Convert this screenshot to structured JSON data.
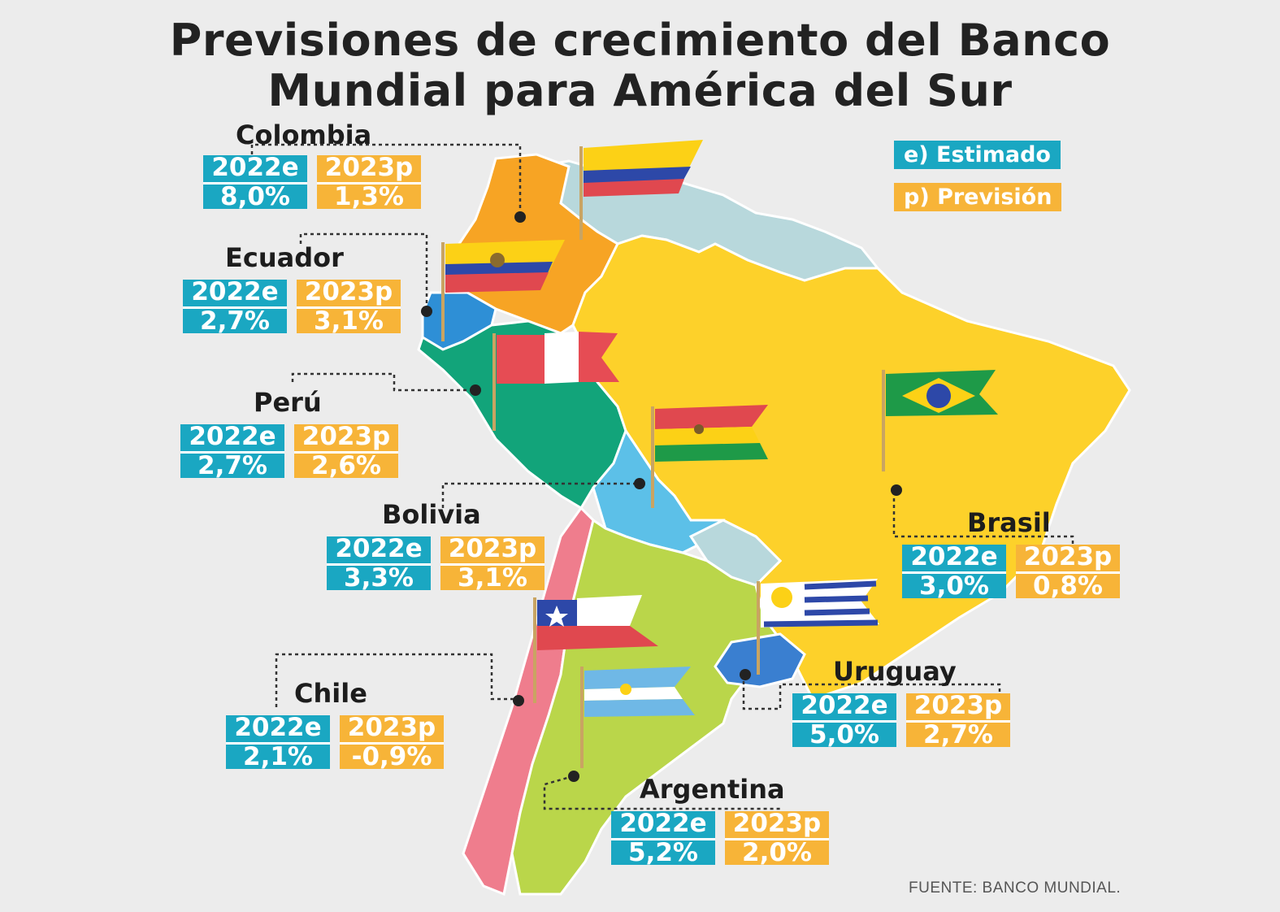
{
  "title_line1": "Previsiones de crecimiento del Banco",
  "title_line2": "Mundial para América del Sur",
  "legend": {
    "estimated": "e) Estimado",
    "forecast": "p) Previsión",
    "estimated_color": "#1aa7c2",
    "forecast_color": "#f7b438"
  },
  "source": "FUENTE: BANCO MUNDIAL.",
  "countries": {
    "colombia": {
      "name": "Colombia",
      "label_e": "2022e",
      "value_e": "8,0%",
      "label_p": "2023p",
      "value_p": "1,3%",
      "color": "#f7a424"
    },
    "ecuador": {
      "name": "Ecuador",
      "label_e": "2022e",
      "value_e": "2,7%",
      "label_p": "2023p",
      "value_p": "3,1%",
      "color": "#2e8fd6"
    },
    "peru": {
      "name": "Perú",
      "label_e": "2022e",
      "value_e": "2,7%",
      "label_p": "2023p",
      "value_p": "2,6%",
      "color": "#12a47a"
    },
    "bolivia": {
      "name": "Bolivia",
      "label_e": "2022e",
      "value_e": "3,3%",
      "label_p": "2023p",
      "value_p": "3,1%",
      "color": "#5cc0e8"
    },
    "brasil": {
      "name": "Brasil",
      "label_e": "2022e",
      "value_e": "3,0%",
      "label_p": "2023p",
      "value_p": "0,8%",
      "color": "#fdd12a"
    },
    "chile": {
      "name": "Chile",
      "label_e": "2022e",
      "value_e": "2,1%",
      "label_p": "2023p",
      "value_p": "-0,9%",
      "color": "#ef7d8d"
    },
    "uruguay": {
      "name": "Uruguay",
      "label_e": "2022e",
      "value_e": "5,0%",
      "label_p": "2023p",
      "value_p": "2,7%",
      "color": "#3a7fd0"
    },
    "argentina": {
      "name": "Argentina",
      "label_e": "2022e",
      "value_e": "5,2%",
      "label_p": "2023p",
      "value_p": "2,0%",
      "color": "#bad64a"
    }
  },
  "other_region_color": "#b8d8dc"
}
